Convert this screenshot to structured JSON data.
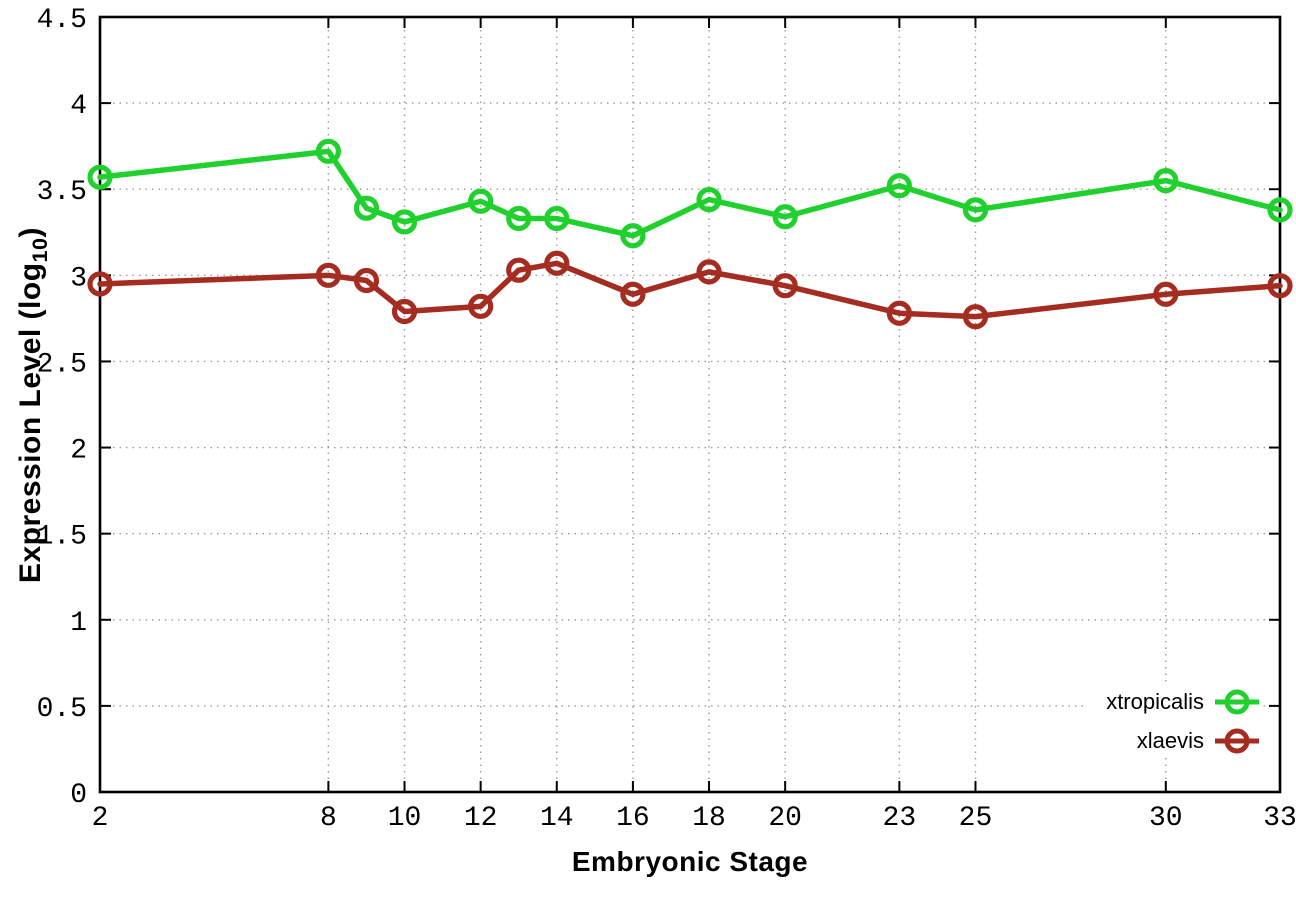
{
  "chart_data": {
    "type": "line",
    "title": "",
    "xlabel": "Embryonic Stage",
    "ylabel": "Expression Level (log10)",
    "ylabel_parts": {
      "prefix": "Expression Level (log",
      "sub": "10",
      "suffix": ")"
    },
    "x": [
      2,
      8,
      9,
      10,
      12,
      13,
      14,
      16,
      18,
      20,
      23,
      25,
      30,
      33
    ],
    "series": [
      {
        "name": "xtropicalis",
        "color": "#20d12e",
        "values": [
          3.57,
          3.72,
          3.39,
          3.31,
          3.43,
          3.33,
          3.33,
          3.23,
          3.44,
          3.34,
          3.52,
          3.38,
          3.55,
          3.38
        ]
      },
      {
        "name": "xlaevis",
        "color": "#a42c21",
        "values": [
          2.95,
          3.0,
          2.97,
          2.79,
          2.82,
          3.03,
          3.07,
          2.89,
          3.02,
          2.94,
          2.78,
          2.76,
          2.89,
          2.94
        ]
      }
    ],
    "xlim": [
      2,
      33
    ],
    "ylim": [
      0,
      4.5
    ],
    "xticks": {
      "values": [
        2,
        8,
        10,
        12,
        14,
        16,
        18,
        20,
        23,
        25,
        30,
        33
      ],
      "labels": [
        "2",
        "8",
        "10",
        "12",
        "14",
        "16",
        "18",
        "20",
        "23",
        "25",
        "30",
        "33"
      ]
    },
    "yticks": {
      "values": [
        0,
        0.5,
        1,
        1.5,
        2,
        2.5,
        3,
        3.5,
        4,
        4.5
      ],
      "labels": [
        "0",
        "0.5",
        "1",
        "1.5",
        "2",
        "2.5",
        "3",
        "3.5",
        "4",
        "4.5"
      ]
    },
    "grid": "dotted",
    "marker": "open-circle",
    "legend": {
      "position": "bottom-right",
      "entries": [
        "xtropicalis",
        "xlaevis"
      ]
    },
    "colors": {
      "axis": "#000000",
      "grid": "#9a9a9a",
      "background": "#ffffff",
      "text": "#000000"
    }
  }
}
